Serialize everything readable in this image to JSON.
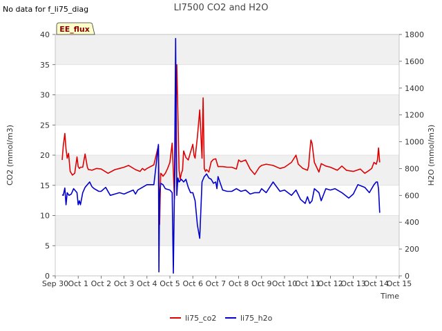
{
  "corner_note": "No data for f_li75_diag",
  "badge": "EE_flux",
  "chart_data": {
    "type": "line",
    "title": "LI7500 CO2 and H2O",
    "xlabel": "Time",
    "ylabel": "CO2 (mmol/m3)",
    "y2label": "H2O (mmol/m3)",
    "xlim": [
      0,
      15
    ],
    "ylim": [
      0,
      40
    ],
    "y2lim": [
      0,
      1800
    ],
    "xticks": [
      {
        "pos": 0,
        "label": "Sep 30"
      },
      {
        "pos": 1,
        "label": "Oct 1"
      },
      {
        "pos": 2,
        "label": "Oct 2"
      },
      {
        "pos": 3,
        "label": "Oct 3"
      },
      {
        "pos": 4,
        "label": "Oct 4"
      },
      {
        "pos": 5,
        "label": "Oct 5"
      },
      {
        "pos": 6,
        "label": "Oct 6"
      },
      {
        "pos": 7,
        "label": "Oct 7"
      },
      {
        "pos": 8,
        "label": "Oct 8"
      },
      {
        "pos": 9,
        "label": "Oct 9"
      },
      {
        "pos": 10,
        "label": "Oct 10"
      },
      {
        "pos": 11,
        "label": "Oct 11"
      },
      {
        "pos": 12,
        "label": "Oct 12"
      },
      {
        "pos": 13,
        "label": "Oct 13"
      },
      {
        "pos": 14,
        "label": "Oct 14"
      },
      {
        "pos": 15,
        "label": "Oct 15"
      }
    ],
    "yticks": [
      0,
      5,
      10,
      15,
      20,
      25,
      30,
      35,
      40
    ],
    "y2ticks": [
      0,
      200,
      400,
      600,
      800,
      1000,
      1200,
      1400,
      1600,
      1800
    ],
    "grid": true,
    "legend_position": "bottom-center",
    "series": [
      {
        "name": "li75_co2",
        "color": "#dd0000",
        "axis": "left",
        "x": [
          0.3,
          0.35,
          0.42,
          0.47,
          0.52,
          0.58,
          0.65,
          0.75,
          0.85,
          0.95,
          1.0,
          1.05,
          1.1,
          1.2,
          1.3,
          1.4,
          1.45,
          1.5,
          1.6,
          1.8,
          2.0,
          2.3,
          2.6,
          2.8,
          3.0,
          3.2,
          3.5,
          3.7,
          3.8,
          3.9,
          4.0,
          4.3,
          4.5,
          4.55,
          4.6,
          4.65,
          4.7,
          4.8,
          4.9,
          5.0,
          5.1,
          5.2,
          5.3,
          5.4,
          5.45,
          5.5,
          5.55,
          5.6,
          5.7,
          5.8,
          6.0,
          6.05,
          6.1,
          6.2,
          6.3,
          6.4,
          6.45,
          6.5,
          6.55,
          6.6,
          6.7,
          6.8,
          6.9,
          7.0,
          7.1,
          7.3,
          7.5,
          7.7,
          7.9,
          8.0,
          8.1,
          8.3,
          8.5,
          8.7,
          8.9,
          9.0,
          9.2,
          9.5,
          9.8,
          10.0,
          10.3,
          10.5,
          10.6,
          10.8,
          11.0,
          11.05,
          11.1,
          11.15,
          11.2,
          11.3,
          11.5,
          11.6,
          11.8,
          12.0,
          12.3,
          12.5,
          12.7,
          13.0,
          13.3,
          13.5,
          13.7,
          13.8,
          13.9,
          14.0,
          14.05,
          14.1,
          14.15
        ],
        "y": [
          19.2,
          21.5,
          23.6,
          21.0,
          19.5,
          20.3,
          17.3,
          16.7,
          17.0,
          19.7,
          18.1,
          17.8,
          18.0,
          18.0,
          20.2,
          18.0,
          17.6,
          17.6,
          17.5,
          17.8,
          17.7,
          17.0,
          17.6,
          17.8,
          18.0,
          18.3,
          17.6,
          17.3,
          17.8,
          17.5,
          17.8,
          18.4,
          21.6,
          8.5,
          17.0,
          16.8,
          16.5,
          17.0,
          17.8,
          18.8,
          22.0,
          12.8,
          35.0,
          17.5,
          16.0,
          17.0,
          17.5,
          20.7,
          19.6,
          19.2,
          21.8,
          20.0,
          19.5,
          23.0,
          27.5,
          19.5,
          29.5,
          17.8,
          17.3,
          17.6,
          17.2,
          18.9,
          19.3,
          19.4,
          18.1,
          18.1,
          18.0,
          18.0,
          17.7,
          19.2,
          18.9,
          19.2,
          17.7,
          16.8,
          18.0,
          18.3,
          18.5,
          18.3,
          17.8,
          18.0,
          18.8,
          20.0,
          18.5,
          17.8,
          17.5,
          18.2,
          20.5,
          22.5,
          22.0,
          18.8,
          17.2,
          18.6,
          18.2,
          18.0,
          17.5,
          18.2,
          17.5,
          17.3,
          17.7,
          17.0,
          17.5,
          17.8,
          18.8,
          18.5,
          19.2,
          21.2,
          18.8
        ]
      },
      {
        "name": "li75_h2o",
        "color": "#0000cc",
        "axis": "right",
        "x": [
          0.3,
          0.35,
          0.42,
          0.47,
          0.52,
          0.6,
          0.7,
          0.8,
          0.95,
          1.0,
          1.05,
          1.1,
          1.2,
          1.3,
          1.5,
          1.6,
          1.7,
          1.9,
          2.0,
          2.2,
          2.4,
          2.6,
          2.8,
          3.0,
          3.2,
          3.4,
          3.5,
          3.6,
          3.8,
          4.0,
          4.3,
          4.5,
          4.52,
          4.55,
          4.6,
          4.7,
          4.8,
          5.0,
          5.1,
          5.15,
          5.2,
          5.25,
          5.3,
          5.35,
          5.4,
          5.5,
          5.6,
          5.7,
          5.8,
          5.9,
          6.0,
          6.1,
          6.2,
          6.3,
          6.4,
          6.45,
          6.5,
          6.55,
          6.6,
          6.7,
          6.8,
          6.9,
          7.0,
          7.05,
          7.1,
          7.3,
          7.5,
          7.7,
          7.9,
          8.0,
          8.1,
          8.3,
          8.5,
          8.7,
          8.9,
          9.0,
          9.2,
          9.5,
          9.8,
          10.0,
          10.3,
          10.5,
          10.7,
          10.9,
          11.0,
          11.1,
          11.2,
          11.3,
          11.5,
          11.6,
          11.8,
          12.0,
          12.2,
          12.5,
          12.8,
          13.0,
          13.2,
          13.5,
          13.7,
          13.9,
          14.0,
          14.05,
          14.1,
          14.15
        ],
        "y": [
          605,
          600,
          655,
          530,
          620,
          600,
          610,
          650,
          620,
          530,
          560,
          530,
          620,
          660,
          700,
          665,
          650,
          630,
          630,
          660,
          600,
          610,
          620,
          610,
          625,
          640,
          610,
          640,
          660,
          680,
          680,
          980,
          30,
          600,
          690,
          680,
          650,
          640,
          620,
          20,
          640,
          1770,
          600,
          730,
          700,
          720,
          700,
          720,
          660,
          620,
          620,
          560,
          380,
          280,
          700,
          720,
          740,
          750,
          760,
          730,
          720,
          690,
          700,
          650,
          740,
          640,
          630,
          630,
          650,
          640,
          630,
          640,
          610,
          620,
          620,
          650,
          620,
          700,
          630,
          640,
          600,
          640,
          570,
          540,
          590,
          540,
          560,
          650,
          620,
          560,
          650,
          640,
          650,
          620,
          580,
          610,
          680,
          660,
          620,
          680,
          700,
          700,
          650,
          470
        ]
      }
    ]
  }
}
